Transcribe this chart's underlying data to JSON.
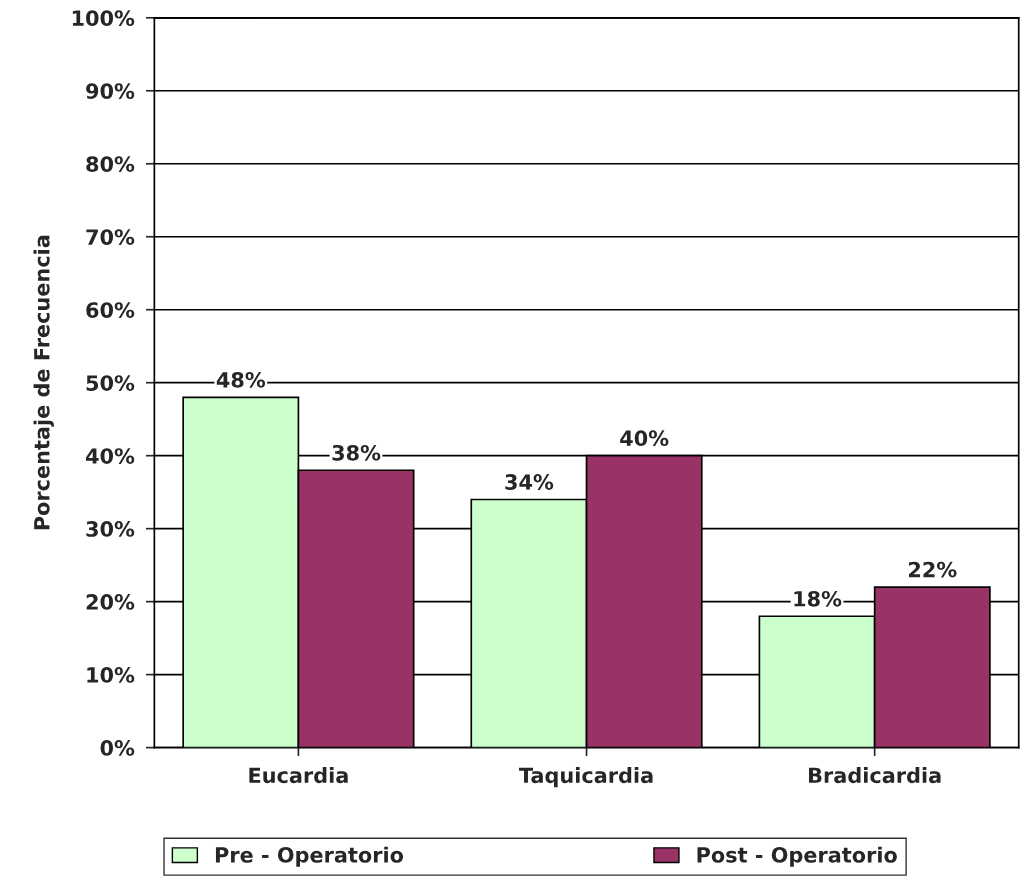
{
  "chart_data": {
    "type": "bar",
    "ylabel": "Porcentaje de Frecuencia",
    "categories": [
      "Eucardia",
      "Taquicardia",
      "Bradicardia"
    ],
    "series": [
      {
        "name": "Pre - Operatorio",
        "color": "#ccffcc",
        "values": [
          48,
          34,
          18
        ],
        "value_labels": [
          "48%",
          "34%",
          "18%"
        ]
      },
      {
        "name": "Post - Operatorio",
        "color": "#993366",
        "values": [
          38,
          40,
          22
        ],
        "value_labels": [
          "38%",
          "40%",
          "22%"
        ]
      }
    ],
    "ylim": [
      0,
      100
    ],
    "yticks": [
      {
        "value": 0,
        "label": "0%"
      },
      {
        "value": 10,
        "label": "10%"
      },
      {
        "value": 20,
        "label": "20%"
      },
      {
        "value": 30,
        "label": "30%"
      },
      {
        "value": 40,
        "label": "40%"
      },
      {
        "value": 50,
        "label": "50%"
      },
      {
        "value": 60,
        "label": "60%"
      },
      {
        "value": 70,
        "label": "70%"
      },
      {
        "value": 80,
        "label": "80%"
      },
      {
        "value": 90,
        "label": "90%"
      },
      {
        "value": 100,
        "label": "100%"
      }
    ],
    "grid": "y",
    "legend": "bottom"
  }
}
